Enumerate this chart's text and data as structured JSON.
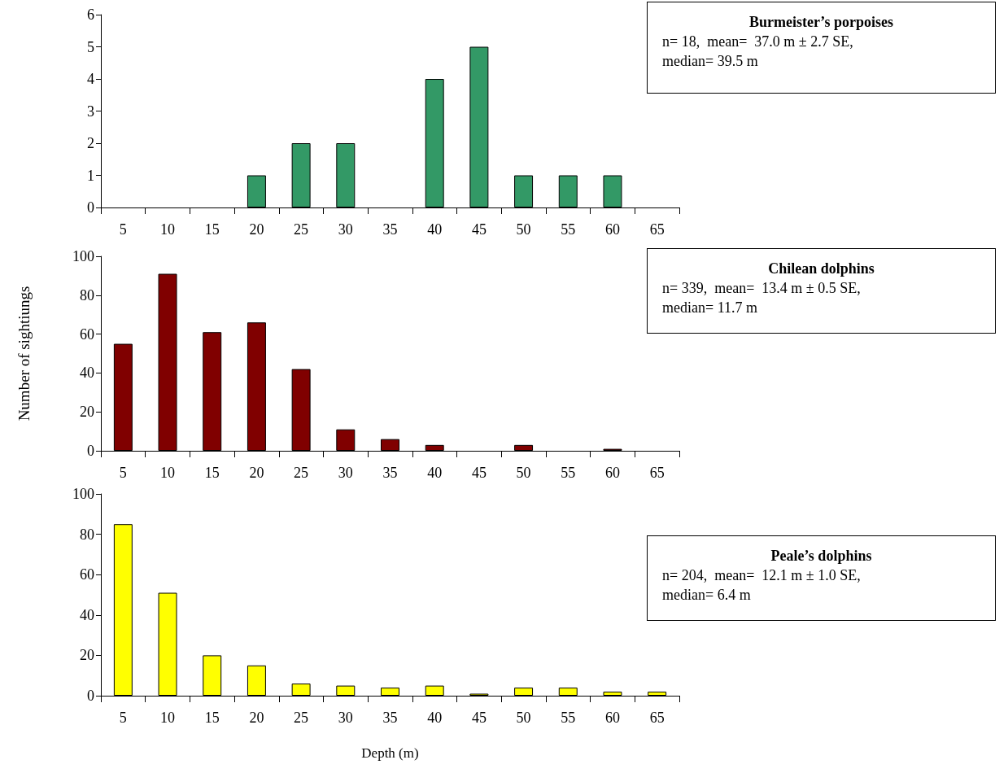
{
  "chart_data": [
    {
      "type": "bar",
      "categories": [
        "5",
        "10",
        "15",
        "20",
        "25",
        "30",
        "35",
        "40",
        "45",
        "50",
        "55",
        "60",
        "65"
      ],
      "values": [
        0,
        0,
        0,
        1,
        2,
        2,
        0,
        4,
        5,
        1,
        1,
        1,
        0
      ],
      "color": "#339966",
      "ylim": [
        0,
        6
      ],
      "yticks": [
        0,
        1,
        2,
        3,
        4,
        5,
        6
      ],
      "grid": false,
      "annotations": [
        "Burmeister’s porpoises",
        "n= 18,  mean=  37.0 m ± 2.7 SE,",
        "median= 39.5 m"
      ]
    },
    {
      "type": "bar",
      "categories": [
        "5",
        "10",
        "15",
        "20",
        "25",
        "30",
        "35",
        "40",
        "45",
        "50",
        "55",
        "60",
        "65"
      ],
      "values": [
        55,
        91,
        61,
        66,
        42,
        11,
        6,
        3,
        0,
        3,
        0,
        1,
        0
      ],
      "color": "#800000",
      "ylim": [
        0,
        100
      ],
      "yticks": [
        0,
        20,
        40,
        60,
        80,
        100
      ],
      "grid": false,
      "ylabel": "Number of sightiungs",
      "annotations": [
        "Chilean dolphins",
        "n= 339,  mean=  13.4 m ± 0.5 SE,",
        "median= 11.7 m"
      ]
    },
    {
      "type": "bar",
      "categories": [
        "5",
        "10",
        "15",
        "20",
        "25",
        "30",
        "35",
        "40",
        "45",
        "50",
        "55",
        "60",
        "65"
      ],
      "values": [
        85,
        51,
        20,
        15,
        6,
        5,
        4,
        5,
        1,
        4,
        4,
        2,
        2
      ],
      "color": "#ffff00",
      "ylim": [
        0,
        100
      ],
      "yticks": [
        0,
        20,
        40,
        60,
        80,
        100
      ],
      "grid": false,
      "xlabel": "Depth (m)",
      "annotations": [
        "Peale’s dolphins",
        "n= 204,  mean=  12.1 m ± 1.0 SE,",
        "median= 6.4 m"
      ]
    }
  ]
}
